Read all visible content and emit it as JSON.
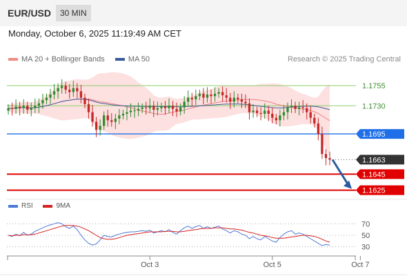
{
  "header": {
    "pair": "EUR/USD",
    "timeframe": "30 MIN"
  },
  "timestamp": "Monday, October 6, 2025 11:19:49 AM CET",
  "legend": {
    "bb": {
      "label": "MA 20 + Bollinger Bands",
      "color": "#f28b82"
    },
    "ma50": {
      "label": "MA 50",
      "color": "#3a5a99"
    }
  },
  "credit": "Research © 2025 Trading Central",
  "colors": {
    "up": "#2e8b2e",
    "down": "#c62828",
    "support": "#e00000",
    "pivot": "#1e6fe8",
    "resistance": "#8fcf6f",
    "current": "#333333",
    "arrow": "#2b5c9e"
  },
  "price_levels": [
    {
      "label": "1.1755",
      "value": 1.1755,
      "kind": "resistance"
    },
    {
      "label": "1.1730",
      "value": 1.173,
      "kind": "resistance"
    },
    {
      "label": "1.1695",
      "value": 1.1695,
      "kind": "pivot"
    },
    {
      "label": "1.1663",
      "value": 1.1663,
      "kind": "current"
    },
    {
      "label": "1.1645",
      "value": 1.1645,
      "kind": "support"
    },
    {
      "label": "1.1625",
      "value": 1.1625,
      "kind": "support"
    }
  ],
  "rsi_legend": {
    "rsi": "RSI",
    "ma": "9MA",
    "rsi_color": "#4a78d8",
    "ma_color": "#d62020"
  },
  "chart_data": [
    {
      "type": "candlestick",
      "ylim": [
        1.1617,
        1.178
      ],
      "close": [
        1.1727,
        1.1726,
        1.1729,
        1.1727,
        1.173,
        1.1725,
        1.1727,
        1.173,
        1.1733,
        1.1737,
        1.174,
        1.1744,
        1.1748,
        1.1752,
        1.1755,
        1.175,
        1.1747,
        1.1752,
        1.1748,
        1.174,
        1.1732,
        1.1722,
        1.171,
        1.17,
        1.1705,
        1.1718,
        1.1712,
        1.171,
        1.1714,
        1.1718,
        1.172,
        1.1722,
        1.1724,
        1.1724,
        1.1726,
        1.1728,
        1.1727,
        1.173,
        1.1725,
        1.1727,
        1.1729,
        1.1727,
        1.173,
        1.1726,
        1.1723,
        1.1728,
        1.1735,
        1.174,
        1.1738,
        1.1742,
        1.1745,
        1.174,
        1.1744,
        1.1742,
        1.1745,
        1.1747,
        1.1743,
        1.174,
        1.1735,
        1.174,
        1.1738,
        1.1735,
        1.1733,
        1.1722,
        1.1724,
        1.1721,
        1.172,
        1.1724,
        1.172,
        1.1715,
        1.1712,
        1.1718,
        1.1722,
        1.1728,
        1.173,
        1.1726,
        1.1728,
        1.1727,
        1.1722,
        1.1715,
        1.1708,
        1.1695,
        1.167,
        1.1665,
        1.1663
      ],
      "x_ticks": [
        {
          "label": "Oct 3",
          "index": 37
        },
        {
          "label": "Oct 5",
          "index": 69
        },
        {
          "label": "Oct 7",
          "index": 92
        }
      ],
      "overlays": [
        "MA 20",
        "Bollinger Bands",
        "MA 50"
      ],
      "forecast": {
        "from": 1.1663,
        "to": 1.1625
      }
    },
    {
      "type": "line",
      "series": [
        {
          "name": "RSI",
          "values": [
            50,
            48,
            52,
            49,
            55,
            50,
            52,
            57,
            60,
            63,
            66,
            68,
            70,
            72,
            70,
            65,
            62,
            66,
            60,
            50,
            42,
            36,
            33,
            35,
            42,
            50,
            48,
            47,
            50,
            52,
            54,
            55,
            56,
            56,
            57,
            58,
            57,
            59,
            54,
            56,
            58,
            56,
            60,
            55,
            52,
            58,
            63,
            66,
            62,
            65,
            67,
            62,
            65,
            62,
            64,
            66,
            61,
            58,
            54,
            58,
            56,
            52,
            50,
            44,
            48,
            44,
            42,
            48,
            44,
            40,
            38,
            46,
            52,
            56,
            58,
            52,
            54,
            52,
            48,
            44,
            40,
            36,
            32,
            34,
            33
          ]
        },
        {
          "name": "9MA",
          "values": [
            50,
            49,
            50,
            50,
            51,
            51,
            51,
            52,
            54,
            56,
            58,
            60,
            62,
            64,
            66,
            67,
            67,
            67,
            66,
            64,
            61,
            58,
            54,
            50,
            46,
            44,
            43,
            43,
            44,
            46,
            48,
            50,
            51,
            52,
            53,
            54,
            55,
            56,
            56,
            56,
            56,
            57,
            57,
            57,
            56,
            56,
            57,
            58,
            59,
            60,
            61,
            62,
            62,
            62,
            63,
            63,
            63,
            62,
            61,
            61,
            60,
            59,
            57,
            55,
            54,
            52,
            50,
            49,
            48,
            46,
            45,
            45,
            45,
            46,
            47,
            48,
            49,
            50,
            50,
            49,
            48,
            46,
            43,
            40,
            38
          ]
        }
      ],
      "ylim": [
        20,
        80
      ],
      "y_ticks": [
        "70",
        "50",
        "30"
      ]
    }
  ]
}
